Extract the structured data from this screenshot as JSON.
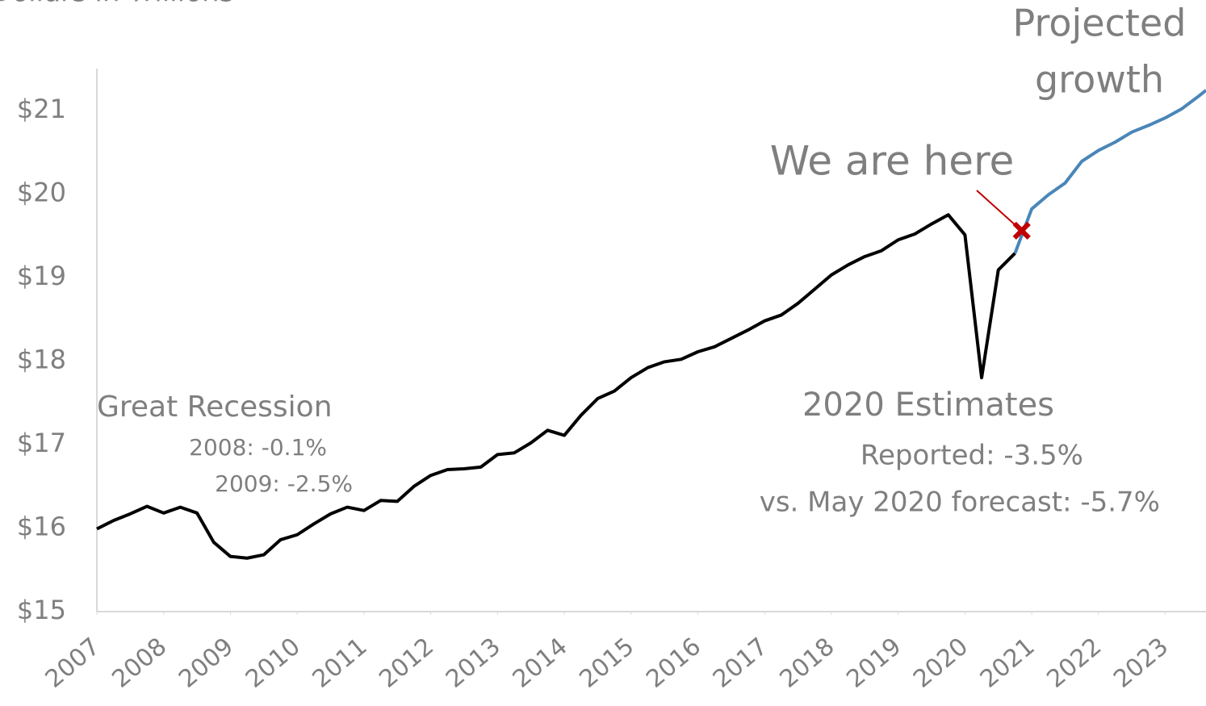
{
  "chart_data": {
    "type": "line",
    "title": "Dollars in Trillions",
    "xlim": [
      2007,
      2023.61
    ],
    "xticks": [
      2007,
      2008,
      2009,
      2010,
      2011,
      2012,
      2013,
      2014,
      2015,
      2016,
      2017,
      2018,
      2019,
      2020,
      2021,
      2022,
      2023
    ],
    "ylim": [
      15,
      21.5
    ],
    "yticks": [
      {
        "value": 15,
        "label": "$15"
      },
      {
        "value": 16,
        "label": "$16"
      },
      {
        "value": 17,
        "label": "$17"
      },
      {
        "value": 18,
        "label": "$18"
      },
      {
        "value": 19,
        "label": "$19"
      },
      {
        "value": 20,
        "label": "$20"
      },
      {
        "value": 21,
        "label": "$21"
      }
    ],
    "series": [
      {
        "name": "Reported",
        "color": "#000000",
        "x": [
          2007,
          2007.25,
          2007.5,
          2007.75,
          2008,
          2008.25,
          2008.5,
          2008.75,
          2009,
          2009.25,
          2009.5,
          2009.75,
          2010,
          2010.25,
          2010.5,
          2010.75,
          2011,
          2011.25,
          2011.5,
          2011.75,
          2012,
          2012.25,
          2012.5,
          2012.75,
          2013,
          2013.25,
          2013.5,
          2013.75,
          2014,
          2014.25,
          2014.5,
          2014.75,
          2015,
          2015.25,
          2015.5,
          2015.75,
          2016,
          2016.25,
          2016.5,
          2016.75,
          2017,
          2017.25,
          2017.5,
          2017.75,
          2018,
          2018.25,
          2018.5,
          2018.75,
          2019,
          2019.25,
          2019.5,
          2019.75,
          2020,
          2020.25,
          2020.5,
          2020.75
        ],
        "values": [
          15.99,
          16.09,
          16.17,
          16.26,
          16.18,
          16.25,
          16.18,
          15.83,
          15.66,
          15.64,
          15.68,
          15.86,
          15.92,
          16.05,
          16.17,
          16.25,
          16.21,
          16.33,
          16.32,
          16.5,
          16.63,
          16.7,
          16.71,
          16.73,
          16.88,
          16.9,
          17.02,
          17.17,
          17.11,
          17.35,
          17.55,
          17.64,
          17.8,
          17.92,
          17.99,
          18.02,
          18.11,
          18.17,
          18.27,
          18.37,
          18.48,
          18.55,
          18.69,
          18.86,
          19.03,
          19.15,
          19.25,
          19.32,
          19.45,
          19.52,
          19.64,
          19.75,
          19.51,
          17.8,
          19.09,
          19.29
        ]
      },
      {
        "name": "Projected",
        "color": "#4a86b8",
        "x": [
          2020.75,
          2021,
          2021.25,
          2021.5,
          2021.75,
          2022,
          2022.25,
          2022.5,
          2022.75,
          2023,
          2023.25,
          2023.5,
          2023.61
        ],
        "values": [
          19.29,
          19.82,
          19.99,
          20.13,
          20.39,
          20.52,
          20.62,
          20.74,
          20.82,
          20.91,
          21.02,
          21.17,
          21.24
        ]
      }
    ],
    "marker": {
      "x": 2020.85,
      "y": 19.56,
      "color": "#c00000"
    },
    "annotations": [
      {
        "lines": [
          "Projected",
          "growth"
        ],
        "color": "#4a86b8"
      },
      {
        "lines": [
          "We are here"
        ],
        "color": "#c00000"
      },
      {
        "lines": [
          "Great Recession",
          "2008: -0.1%",
          "2009: -2.5%"
        ],
        "color": "#7f7f7f"
      },
      {
        "lines": [
          "2020 Estimates",
          "Reported: -3.5%",
          "vs. May 2020 forecast: -5.7%"
        ],
        "color": "#7f7f7f"
      }
    ]
  }
}
